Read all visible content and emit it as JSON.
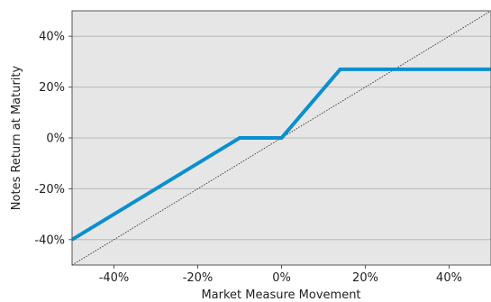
{
  "chart_data": {
    "type": "line",
    "title": "",
    "xlabel": "Market Measure Movement",
    "ylabel": "Notes Return at Maturity",
    "xlim": [
      -50,
      50
    ],
    "ylim": [
      -50,
      50
    ],
    "x_ticks": [
      -40,
      -20,
      0,
      20,
      40
    ],
    "y_ticks": [
      -40,
      -20,
      0,
      20,
      40
    ],
    "x_tick_labels": [
      "-40%",
      "-20%",
      "0%",
      "20%",
      "40%"
    ],
    "y_tick_labels": [
      "-40%",
      "-20%",
      "0%",
      "20%",
      "40%"
    ],
    "grid": "horizontal",
    "legend": "none",
    "series": [
      {
        "style": "solid",
        "color": "#0a8fd0",
        "x": [
          -50,
          -10,
          0,
          14,
          50
        ],
        "y": [
          -40,
          0,
          0,
          27,
          27
        ]
      },
      {
        "style": "dotted",
        "color": "#333333",
        "x": [
          -50,
          50
        ],
        "y": [
          -50,
          50
        ]
      }
    ]
  }
}
